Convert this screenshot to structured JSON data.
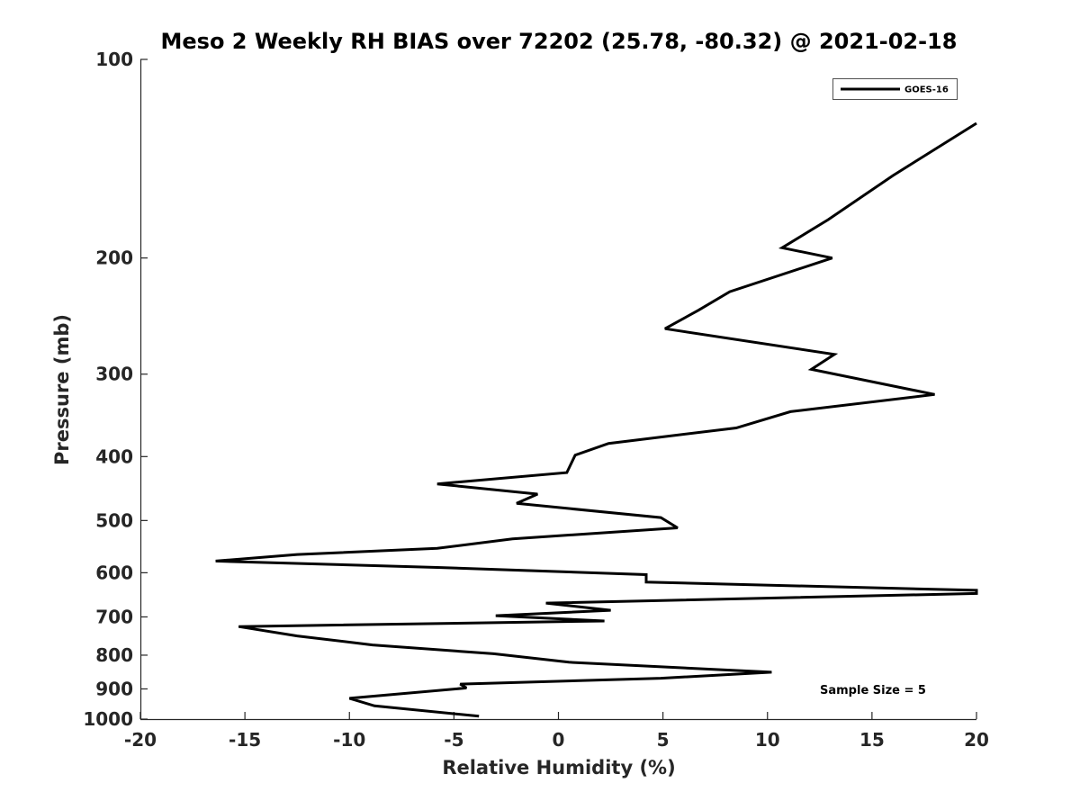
{
  "chart_data": {
    "type": "line",
    "title": "Meso 2 Weekly RH BIAS over 72202 (25.78, -80.32) @ 2021-02-18",
    "xlabel": "Relative Humidity (%)",
    "ylabel": "Pressure (mb)",
    "xlim": [
      -20,
      20
    ],
    "ylim": [
      100,
      1000
    ],
    "y_scale": "log",
    "y_reversed": true,
    "x_ticks": [
      -20,
      -15,
      -10,
      -5,
      0,
      5,
      10,
      15,
      20
    ],
    "x_tick_labels": [
      "-20",
      "-15",
      "-10",
      "-5",
      "0",
      "5",
      "10",
      "15",
      "20"
    ],
    "y_ticks": [
      100,
      200,
      300,
      400,
      500,
      600,
      700,
      800,
      900,
      1000
    ],
    "y_tick_labels": [
      "100",
      "200",
      "300",
      "400",
      "500",
      "600",
      "700",
      "800",
      "900",
      "1000"
    ],
    "grid": false,
    "legend_position": "top-right",
    "annotation": "Sample Size = 5",
    "series": [
      {
        "name": "GOES-16",
        "color": "#000000",
        "x": [
          20,
          16,
          12.9,
          10.7,
          13.1,
          8.2,
          6.7,
          5.1,
          13.2,
          12.1,
          18.0,
          11.1,
          8.5,
          2.4,
          0.8,
          0.4,
          -5.8,
          -1.0,
          -2.0,
          4.9,
          5.7,
          -2.2,
          -5.8,
          -12.5,
          -16.4,
          -5.8,
          4.2,
          4.2,
          20,
          20,
          -0.6,
          2.5,
          -3.0,
          2.2,
          -15.3,
          -12.5,
          -8.9,
          -3.1,
          0.5,
          10.2,
          4.9,
          -4.7,
          -4.4,
          -10.0,
          -8.8,
          -3.8
        ],
        "y": [
          125,
          150,
          175,
          193,
          200,
          225,
          240,
          256,
          280,
          295,
          322,
          342,
          362,
          382,
          398,
          423,
          440,
          456,
          471,
          495,
          513,
          533,
          551,
          563,
          576,
          589,
          604,
          620,
          638,
          645,
          667,
          684,
          697,
          710,
          724,
          748,
          772,
          796,
          820,
          849,
          867,
          885,
          897,
          930,
          955,
          990
        ]
      }
    ]
  }
}
